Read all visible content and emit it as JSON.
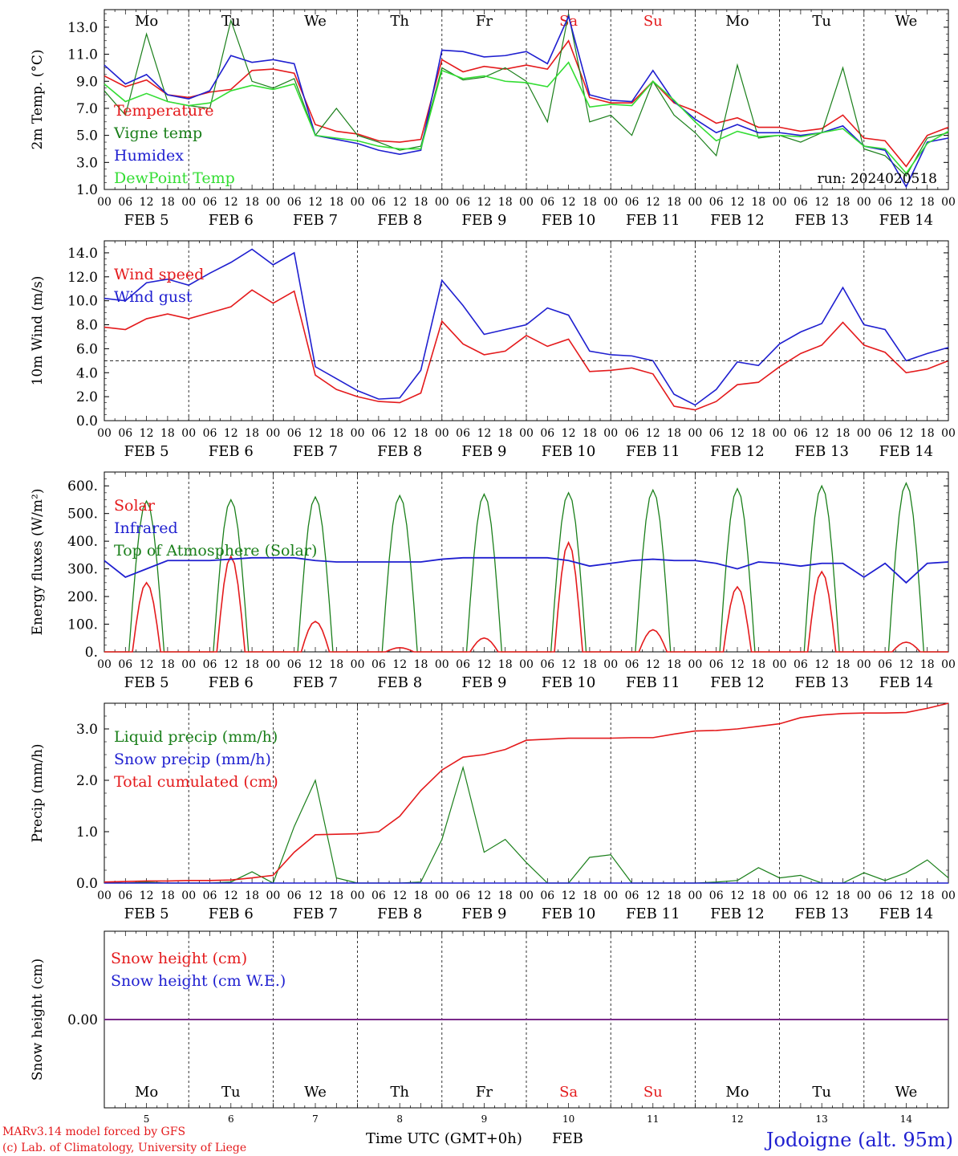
{
  "colors": {
    "red": "#e41a1c",
    "blue": "#1f1fd0",
    "green": "#1a7f1a",
    "lightgreen": "#33dd33",
    "purple": "#7a2a8a",
    "axis": "#000000"
  },
  "run_label": "run: 2024020518",
  "days": [
    "Mo",
    "Tu",
    "We",
    "Th",
    "Fr",
    "Sa",
    "Su",
    "Mo",
    "Tu",
    "We"
  ],
  "day_colors": [
    "#000000",
    "#000000",
    "#000000",
    "#000000",
    "#000000",
    "#e41a1c",
    "#e41a1c",
    "#000000",
    "#000000",
    "#000000"
  ],
  "date_labels": [
    "FEB  5",
    "FEB  6",
    "FEB  7",
    "FEB  8",
    "FEB  9",
    "FEB 10",
    "FEB 11",
    "FEB 12",
    "FEB 13",
    "FEB 14"
  ],
  "date_numbers": [
    "5",
    "6",
    "7",
    "8",
    "9",
    "10",
    "11",
    "12",
    "13",
    "14"
  ],
  "hour_ticks": [
    "00",
    "06",
    "12",
    "18"
  ],
  "bottom": {
    "month": "FEB",
    "time_label": "Time UTC (GMT+0h)",
    "credit_line1": "MARv3.14 model forced by GFS",
    "credit_line2": "(c) Lab. of Climatology, University of Liege",
    "location": "Jodoigne (alt. 95m)"
  },
  "chart_data": [
    {
      "type": "line",
      "ylabel": "2m Temp. (°C)",
      "ylim": [
        1.0,
        14.3
      ],
      "yticks": [
        "1.0",
        "3.0",
        "5.0",
        "7.0",
        "9.0",
        "11.0",
        "13.0"
      ],
      "ytick_values": [
        1,
        3,
        5,
        7,
        9,
        11,
        13
      ],
      "x_hours": [
        0,
        6,
        12,
        18,
        24,
        30,
        36,
        42,
        48,
        54,
        60,
        66,
        72,
        78,
        84,
        90,
        96,
        102,
        108,
        114,
        120,
        126,
        132,
        138,
        144,
        150,
        156,
        162,
        168,
        174,
        180,
        186,
        192,
        198,
        204,
        210,
        216,
        222,
        228,
        234,
        240
      ],
      "series": [
        {
          "name": "Temperature",
          "color": "#e41a1c",
          "values": [
            9.4,
            8.6,
            9.1,
            8.0,
            7.8,
            8.2,
            8.4,
            9.8,
            9.9,
            9.6,
            5.8,
            5.3,
            5.1,
            4.6,
            4.5,
            4.7,
            10.6,
            9.7,
            10.1,
            9.9,
            10.2,
            9.9,
            12.0,
            7.8,
            7.4,
            7.4,
            9.0,
            7.4,
            6.8,
            5.9,
            6.3,
            5.6,
            5.6,
            5.3,
            5.5,
            6.5,
            4.8,
            4.6,
            2.7,
            5.0,
            5.6
          ]
        },
        {
          "name": "Vigne temp",
          "color": "#1a7f1a",
          "values": [
            8.3,
            6.5,
            12.5,
            7.5,
            7.2,
            7.0,
            13.5,
            9.0,
            8.5,
            9.2,
            5.0,
            7.0,
            5.0,
            4.5,
            3.9,
            4.2,
            10.0,
            9.1,
            9.3,
            10.0,
            9.0,
            6.0,
            14.0,
            6.0,
            6.5,
            5.0,
            9.0,
            6.5,
            5.2,
            3.5,
            10.2,
            4.8,
            5.0,
            4.5,
            5.2,
            10.0,
            4.0,
            3.5,
            2.0,
            4.8,
            5.2
          ]
        },
        {
          "name": "Humidex",
          "color": "#1f1fd0",
          "values": [
            10.2,
            8.8,
            9.5,
            8.0,
            7.7,
            8.3,
            10.9,
            10.4,
            10.6,
            10.3,
            5.0,
            4.7,
            4.4,
            3.9,
            3.6,
            3.9,
            11.3,
            11.2,
            10.8,
            10.9,
            11.2,
            10.3,
            13.8,
            8.0,
            7.6,
            7.5,
            9.8,
            7.5,
            6.2,
            5.2,
            5.8,
            5.2,
            5.2,
            5.0,
            5.2,
            5.7,
            4.2,
            3.9,
            1.2,
            4.5,
            4.8
          ]
        },
        {
          "name": "DewPoint Temp",
          "color": "#33dd33",
          "values": [
            8.8,
            7.5,
            8.1,
            7.5,
            7.2,
            7.4,
            8.3,
            8.7,
            8.4,
            8.8,
            5.0,
            4.8,
            4.6,
            4.2,
            4.0,
            4.0,
            9.8,
            9.2,
            9.4,
            9.0,
            8.9,
            8.6,
            10.4,
            7.1,
            7.3,
            7.2,
            9.0,
            7.6,
            6.0,
            4.6,
            5.3,
            4.9,
            5.0,
            4.9,
            5.2,
            5.5,
            4.2,
            4.0,
            2.2,
            4.4,
            5.3
          ]
        }
      ]
    },
    {
      "type": "line",
      "ylabel": "10m Wind (m/s)",
      "ylim": [
        0.0,
        15.0
      ],
      "yticks": [
        "0.0",
        "2.0",
        "4.0",
        "6.0",
        "8.0",
        "10.0",
        "12.0",
        "14.0"
      ],
      "ytick_values": [
        0,
        2,
        4,
        6,
        8,
        10,
        12,
        14
      ],
      "reference_line": 5.0,
      "x_hours": [
        0,
        6,
        12,
        18,
        24,
        30,
        36,
        42,
        48,
        54,
        60,
        66,
        72,
        78,
        84,
        90,
        96,
        102,
        108,
        114,
        120,
        126,
        132,
        138,
        144,
        150,
        156,
        162,
        168,
        174,
        180,
        186,
        192,
        198,
        204,
        210,
        216,
        222,
        228,
        234,
        240
      ],
      "series": [
        {
          "name": "Wind speed",
          "color": "#e41a1c",
          "values": [
            7.8,
            7.6,
            8.5,
            8.9,
            8.5,
            9.0,
            9.5,
            10.9,
            9.8,
            10.8,
            3.8,
            2.6,
            2.0,
            1.6,
            1.5,
            2.3,
            8.3,
            6.4,
            5.5,
            5.8,
            7.1,
            6.2,
            6.8,
            4.1,
            4.2,
            4.4,
            3.9,
            1.2,
            0.9,
            1.6,
            3.0,
            3.2,
            4.5,
            5.6,
            6.3,
            8.2,
            6.3,
            5.7,
            4.0,
            4.3,
            5.0
          ]
        },
        {
          "name": "Wind gust",
          "color": "#1f1fd0",
          "values": [
            10.2,
            10.0,
            11.5,
            11.8,
            11.3,
            12.3,
            13.2,
            14.3,
            13.0,
            14.0,
            4.5,
            3.5,
            2.5,
            1.8,
            1.9,
            4.2,
            11.7,
            9.6,
            7.2,
            7.6,
            8.0,
            9.4,
            8.8,
            5.8,
            5.5,
            5.4,
            5.0,
            2.2,
            1.3,
            2.6,
            4.9,
            4.6,
            6.4,
            7.4,
            8.1,
            11.1,
            8.0,
            7.6,
            5.0,
            5.6,
            6.1
          ]
        }
      ]
    },
    {
      "type": "line",
      "ylabel": "Energy fluxes (W/m²)",
      "ylim": [
        0,
        650
      ],
      "yticks": [
        "0.",
        "100.",
        "200.",
        "300.",
        "400.",
        "500.",
        "600."
      ],
      "ytick_values": [
        0,
        100,
        200,
        300,
        400,
        500,
        600
      ],
      "series": [
        {
          "name": "Solar",
          "color": "#e41a1c",
          "day_peaks": [
            250,
            345,
            110,
            15,
            50,
            395,
            80,
            235,
            290,
            35
          ]
        },
        {
          "name": "Infrared",
          "color": "#1f1fd0",
          "x_hours": [
            0,
            6,
            12,
            18,
            24,
            30,
            36,
            42,
            48,
            54,
            60,
            66,
            72,
            78,
            84,
            90,
            96,
            102,
            108,
            114,
            120,
            126,
            132,
            138,
            144,
            150,
            156,
            162,
            168,
            174,
            180,
            186,
            192,
            198,
            204,
            210,
            216,
            222,
            228,
            234,
            240
          ],
          "values": [
            330,
            270,
            300,
            330,
            330,
            330,
            335,
            340,
            340,
            340,
            330,
            325,
            325,
            325,
            325,
            325,
            335,
            340,
            340,
            340,
            340,
            340,
            330,
            310,
            320,
            330,
            335,
            330,
            330,
            320,
            300,
            325,
            320,
            310,
            320,
            320,
            270,
            320,
            250,
            320,
            325
          ]
        },
        {
          "name": "Top of Atmosphere (Solar)",
          "color": "#1a7f1a",
          "day_peaks": [
            545,
            550,
            560,
            565,
            570,
            575,
            585,
            590,
            600,
            610
          ]
        }
      ]
    },
    {
      "type": "line",
      "ylabel": "Precip (mm/h)",
      "ylim": [
        0.0,
        3.5
      ],
      "yticks": [
        "0.0",
        "1.0",
        "2.0",
        "3.0"
      ],
      "ytick_values": [
        0,
        1,
        2,
        3
      ],
      "x_hours": [
        0,
        6,
        12,
        18,
        24,
        30,
        36,
        42,
        48,
        54,
        60,
        66,
        72,
        78,
        84,
        90,
        96,
        102,
        108,
        114,
        120,
        126,
        132,
        138,
        144,
        150,
        156,
        162,
        168,
        174,
        180,
        186,
        192,
        198,
        204,
        210,
        216,
        222,
        228,
        234,
        240
      ],
      "series": [
        {
          "name": "Liquid precip (mm/h)",
          "color": "#1a7f1a",
          "values": [
            0.02,
            0,
            0.02,
            0,
            0,
            0,
            0.02,
            0.22,
            0,
            1.1,
            2.0,
            0.1,
            0,
            0,
            0,
            0.02,
            0.85,
            2.25,
            0.6,
            0.85,
            0.4,
            0,
            0,
            0.5,
            0.55,
            0,
            0,
            0,
            0,
            0.02,
            0.05,
            0.3,
            0.1,
            0.15,
            0,
            0,
            0.2,
            0.05,
            0.2,
            0.45,
            0.1
          ]
        },
        {
          "name": "Snow precip (mm/h)",
          "color": "#1f1fd0",
          "values": [
            0,
            0,
            0,
            0,
            0,
            0,
            0,
            0,
            0,
            0,
            0,
            0,
            0,
            0,
            0,
            0,
            0,
            0,
            0,
            0,
            0,
            0,
            0,
            0,
            0,
            0,
            0,
            0,
            0,
            0,
            0,
            0,
            0,
            0,
            0,
            0,
            0,
            0,
            0,
            0,
            0
          ]
        },
        {
          "name": "Total cumulated (cm)",
          "color": "#e41a1c",
          "values": [
            0.02,
            0.03,
            0.04,
            0.04,
            0.05,
            0.05,
            0.06,
            0.1,
            0.15,
            0.6,
            0.94,
            0.95,
            0.96,
            1.0,
            1.3,
            1.8,
            2.2,
            2.45,
            2.5,
            2.6,
            2.78,
            2.8,
            2.82,
            2.82,
            2.82,
            2.83,
            2.83,
            2.9,
            2.96,
            2.97,
            3.0,
            3.05,
            3.1,
            3.22,
            3.27,
            3.3,
            3.31,
            3.31,
            3.32,
            3.4,
            3.5
          ]
        }
      ]
    },
    {
      "type": "line",
      "ylabel": "Snow height (cm)",
      "yticks": [
        "0.00"
      ],
      "series": [
        {
          "name": "Snow height (cm)",
          "color": "#e41a1c",
          "values": [
            0
          ]
        },
        {
          "name": "Snow height (cm W.E.)",
          "color": "#1f1fd0",
          "values": [
            0
          ]
        }
      ]
    }
  ]
}
